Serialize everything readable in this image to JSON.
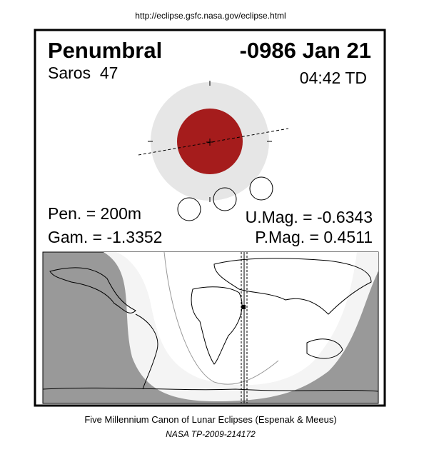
{
  "header": {
    "url": "http://eclipse.gsfc.nasa.gov/eclipse.html"
  },
  "eclipse": {
    "type": "Penumbral",
    "date": "-0986 Jan 21",
    "saros": "Saros  47",
    "time": "04:42 TD",
    "pen": "Pen. = 200m",
    "gam": "Gam. = -1.3352",
    "umag": "U.Mag. = -0.6343",
    "pmag": "P.Mag. = 0.4511"
  },
  "footer": {
    "canon": "Five Millennium Canon of Lunar Eclipses (Espenak & Meeus)",
    "ref": "NASA TP-2009-214172"
  }
}
